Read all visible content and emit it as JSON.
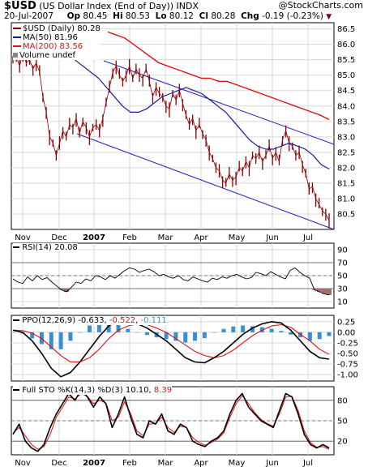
{
  "header": {
    "symbol": "$USD",
    "description": "(US Dollar Index (End of Day))",
    "exchange": "INDX",
    "branding": "@StockCharts.com",
    "date": "20-Jul-2007",
    "open_label": "Op",
    "open": "80.45",
    "high_label": "Hi",
    "high": "80.53",
    "low_label": "Lo",
    "low": "80.12",
    "close_label": "Cl",
    "close": "80.28",
    "change_label": "Chg",
    "change": "-0.19 (-0.23%)",
    "change_icon": "down-triangle-icon"
  },
  "legend": {
    "price": "$USD (Daily) 80.28",
    "ma50": "MA(50) 81.96",
    "ma200": "MA(200) 83.56",
    "volume": "Volume undef"
  },
  "indicators": {
    "rsi": "RSI(14) 20.08",
    "ppo_label": "PPO(12,26,9)",
    "ppo_v1": "-0.633",
    "ppo_v2": "-0.522",
    "ppo_v3": "-0.111",
    "sto_label": "Full STO %K(14,3) %D(3)",
    "sto_k": "10.10",
    "sto_d": "8.39"
  },
  "colors": {
    "price": "#8b0000",
    "ma50": "#1a1a9c",
    "ma200": "#e01010",
    "channel": "#2020c0",
    "ppo_hist": "#3a8fd0",
    "rsi_fill": "#a07070",
    "grid": "#d8d8d8"
  },
  "chart_data": [
    {
      "type": "line",
      "name": "price",
      "x_ticks": [
        "Nov",
        "Dec",
        "2007",
        "Feb",
        "Mar",
        "Apr",
        "May",
        "Jun",
        "Jul"
      ],
      "y_ticks": [
        "86.5",
        "86.0",
        "85.5",
        "85.0",
        "84.5",
        "84.0",
        "83.5",
        "83.0",
        "82.5",
        "82.0",
        "81.5",
        "81.0",
        "80.5"
      ],
      "ylim": [
        80.0,
        86.7
      ],
      "series": [
        {
          "name": "$USD (Daily)",
          "values": [
            85.5,
            85.6,
            85.3,
            85.7,
            85.4,
            85.5,
            85.2,
            85.4,
            85.1,
            84.3,
            83.8,
            83.0,
            82.8,
            82.4,
            82.8,
            83.2,
            83.0,
            83.4,
            83.3,
            83.6,
            83.1,
            83.5,
            83.3,
            83.0,
            83.3,
            83.4,
            83.2,
            83.6,
            84.1,
            84.6,
            85.1,
            85.3,
            85.0,
            84.8,
            85.0,
            85.3,
            84.9,
            85.2,
            85.0,
            84.9,
            85.2,
            84.8,
            84.3,
            84.6,
            84.4,
            84.3,
            84.0,
            83.9,
            84.4,
            84.2,
            84.5,
            84.1,
            83.7,
            83.4,
            83.6,
            83.2,
            83.4,
            83.1,
            82.9,
            82.5,
            82.3,
            82.0,
            81.9,
            81.6,
            81.5,
            81.8,
            81.6,
            81.7,
            82.0,
            81.9,
            82.2,
            82.0,
            82.4,
            82.3,
            82.5,
            82.2,
            82.4,
            82.7,
            82.3,
            82.5,
            82.2,
            82.9,
            83.2,
            82.8,
            82.7,
            82.4,
            82.5,
            82.1,
            81.8,
            81.3,
            81.4,
            81.0,
            80.8,
            80.6,
            80.5,
            80.3
          ]
        },
        {
          "name": "MA(50)",
          "values": [
            85.9,
            85.8,
            85.7,
            85.5,
            85.3,
            85.1,
            84.9,
            84.6,
            84.3,
            84.0,
            83.8,
            83.8,
            83.9,
            84.1,
            84.3,
            84.4,
            84.5,
            84.6,
            84.5,
            84.4,
            84.2,
            84.0,
            83.8,
            83.5,
            83.2,
            82.9,
            82.7,
            82.6,
            82.6,
            82.7,
            82.8,
            82.7,
            82.6,
            82.4,
            82.1,
            81.96
          ]
        },
        {
          "name": "MA(200)",
          "values": [
            86.4,
            86.3,
            86.2,
            86.0,
            85.8,
            85.6,
            85.4,
            85.3,
            85.2,
            85.1,
            85.0,
            84.9,
            84.9,
            84.8,
            84.8,
            84.7,
            84.6,
            84.5,
            84.4,
            84.3,
            84.2,
            84.1,
            84.0,
            83.9,
            83.8,
            83.7,
            83.56
          ]
        }
      ]
    },
    {
      "type": "line",
      "name": "rsi",
      "y_ticks": [
        "90",
        "70",
        "50",
        "30",
        "10"
      ],
      "ylim": [
        0,
        100
      ],
      "series": [
        {
          "name": "RSI(14)",
          "values": [
            45,
            40,
            38,
            48,
            42,
            50,
            44,
            47,
            40,
            34,
            28,
            25,
            32,
            40,
            38,
            45,
            42,
            50,
            48,
            44,
            50,
            46,
            52,
            58,
            62,
            60,
            55,
            58,
            60,
            56,
            50,
            52,
            48,
            46,
            50,
            44,
            42,
            48,
            45,
            42,
            40,
            46,
            44,
            48,
            46,
            50,
            52,
            48,
            45,
            47,
            55,
            53,
            50,
            56,
            52,
            48,
            45,
            58,
            62,
            55,
            50,
            46,
            28,
            25,
            22,
            20.08
          ]
        }
      ]
    },
    {
      "type": "line",
      "name": "ppo",
      "y_ticks": [
        "0.25",
        "0.00",
        "-0.25",
        "-0.50",
        "-0.75",
        "-1.00"
      ],
      "ylim": [
        -1.15,
        0.4
      ],
      "series": [
        {
          "name": "PPO",
          "values": [
            0.05,
            0.0,
            -0.2,
            -0.5,
            -0.85,
            -1.05,
            -0.95,
            -0.7,
            -0.4,
            -0.1,
            0.15,
            0.28,
            0.25,
            0.2,
            0.1,
            -0.05,
            -0.2,
            -0.4,
            -0.6,
            -0.7,
            -0.72,
            -0.6,
            -0.45,
            -0.25,
            -0.05,
            0.1,
            0.2,
            0.25,
            0.22,
            0.05,
            -0.2,
            -0.45,
            -0.6,
            -0.633
          ]
        },
        {
          "name": "Signal",
          "values": [
            0.05,
            0.04,
            -0.02,
            -0.15,
            -0.35,
            -0.55,
            -0.7,
            -0.7,
            -0.6,
            -0.4,
            -0.15,
            0.05,
            0.15,
            0.2,
            0.18,
            0.1,
            0.0,
            -0.15,
            -0.3,
            -0.45,
            -0.55,
            -0.6,
            -0.55,
            -0.42,
            -0.25,
            -0.08,
            0.05,
            0.15,
            0.18,
            0.12,
            -0.05,
            -0.2,
            -0.4,
            -0.522
          ]
        }
      ]
    },
    {
      "type": "line",
      "name": "stochastic",
      "y_ticks": [
        "80",
        "50",
        "20"
      ],
      "ylim": [
        0,
        100
      ],
      "series": [
        {
          "name": "%K",
          "values": [
            30,
            45,
            20,
            10,
            5,
            15,
            40,
            60,
            75,
            90,
            80,
            95,
            85,
            70,
            85,
            75,
            40,
            60,
            85,
            55,
            30,
            25,
            50,
            45,
            60,
            35,
            30,
            45,
            40,
            20,
            15,
            12,
            20,
            25,
            35,
            60,
            80,
            90,
            70,
            60,
            50,
            45,
            40,
            65,
            90,
            85,
            60,
            30,
            15,
            10,
            15,
            10.1
          ]
        },
        {
          "name": "%D",
          "values": [
            32,
            40,
            28,
            15,
            8,
            12,
            30,
            55,
            70,
            85,
            82,
            90,
            86,
            75,
            80,
            76,
            50,
            55,
            78,
            60,
            35,
            28,
            45,
            46,
            55,
            40,
            33,
            42,
            40,
            25,
            18,
            14,
            18,
            23,
            32,
            55,
            75,
            87,
            75,
            62,
            52,
            46,
            42,
            60,
            85,
            86,
            65,
            35,
            18,
            11,
            12,
            8.39
          ]
        }
      ]
    }
  ]
}
